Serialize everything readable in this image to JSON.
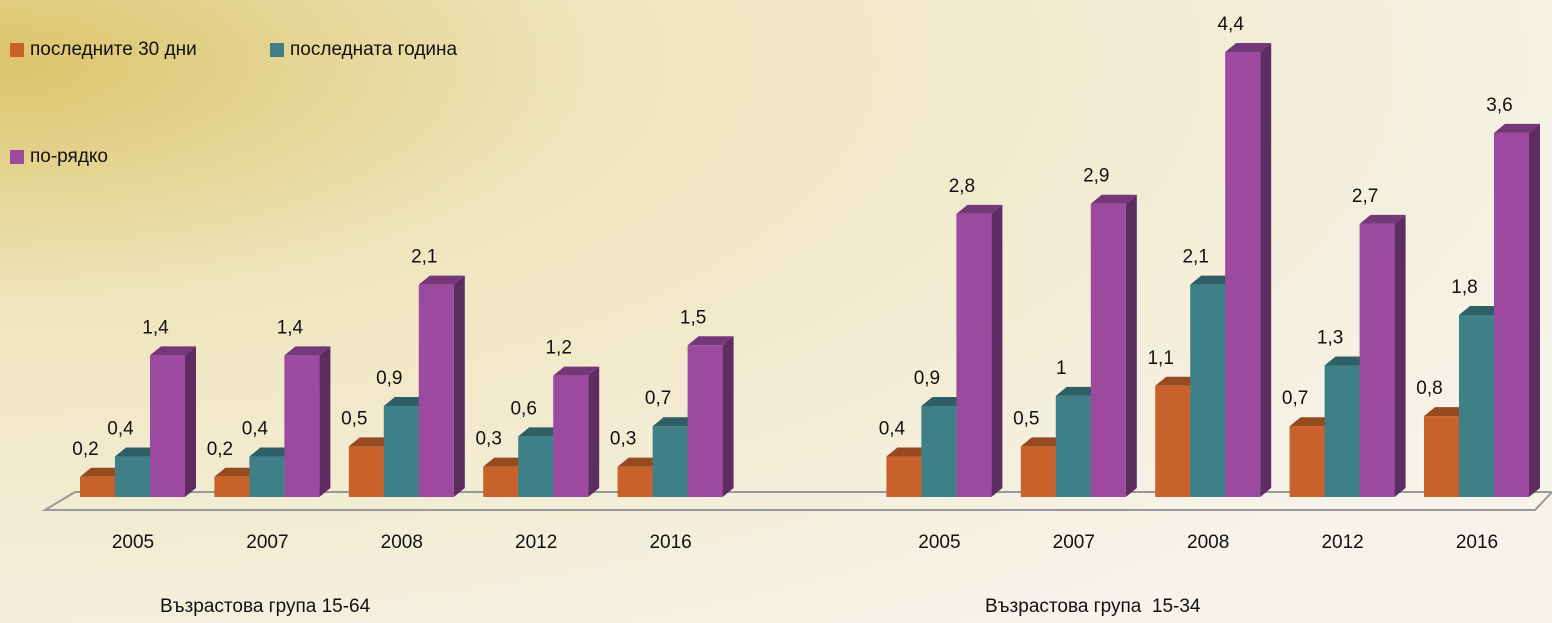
{
  "chart_data": {
    "type": "bar3d",
    "categories": [
      "2005",
      "2007",
      "2008",
      "2012",
      "2016",
      null,
      "2005",
      "2007",
      "2008",
      "2012",
      "2016"
    ],
    "series": [
      {
        "name": "последните 30 дни",
        "color": "#c8622a",
        "values": [
          0.2,
          0.2,
          0.5,
          0.3,
          0.3,
          null,
          0.4,
          0.5,
          1.1,
          0.7,
          0.8
        ],
        "value_labels": [
          "0,2",
          "0,2",
          "0,5",
          "0,3",
          "0,3",
          null,
          "0,4",
          "0,5",
          "1,1",
          "0,7",
          "0,8"
        ]
      },
      {
        "name": "последната година",
        "color": "#3f7f87",
        "values": [
          0.4,
          0.4,
          0.9,
          0.6,
          0.7,
          null,
          0.9,
          1,
          2.1,
          1.3,
          1.8
        ],
        "value_labels": [
          "0,4",
          "0,4",
          "0,9",
          "0,6",
          "0,7",
          null,
          "0,9",
          "1",
          "2,1",
          "1,3",
          "1,8"
        ]
      },
      {
        "name": "по-рядко",
        "color": "#9b4aa0",
        "values": [
          1.4,
          1.4,
          2.1,
          1.2,
          1.5,
          null,
          2.8,
          2.9,
          4.4,
          2.7,
          3.6
        ],
        "value_labels": [
          "1,4",
          "1,4",
          "2,1",
          "1,2",
          "1,5",
          null,
          "2,8",
          "2,9",
          "4,4",
          "2,7",
          "3,6"
        ]
      }
    ],
    "annotations": [
      "Възрастова група 15-64",
      "Възрастова група  15-34"
    ]
  }
}
